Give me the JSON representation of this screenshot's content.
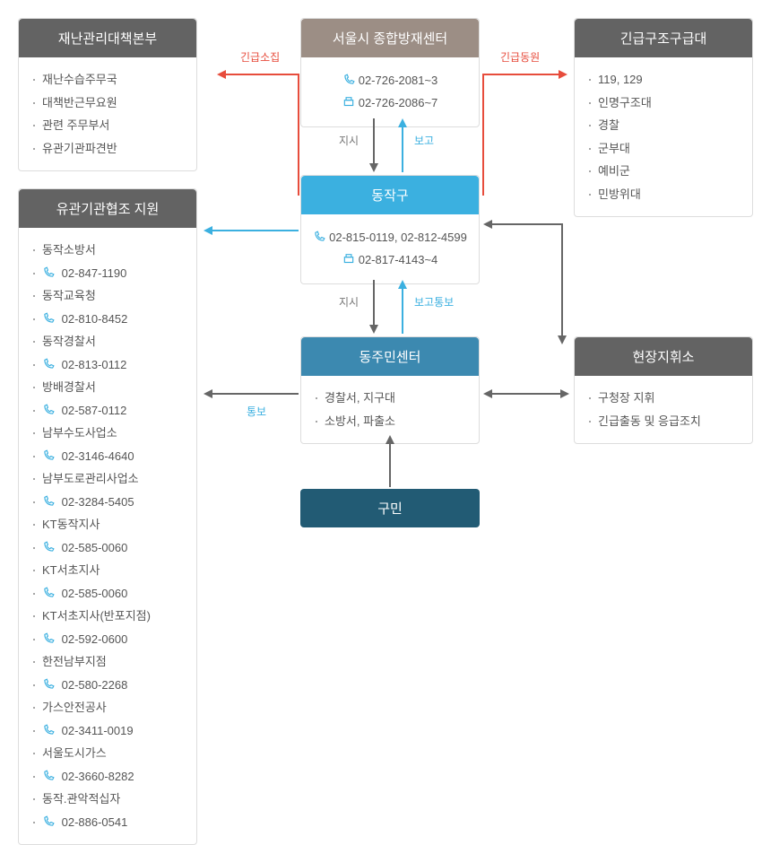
{
  "colors": {
    "beige": "#9c8e85",
    "dark": "#636363",
    "blue1": "#3bb0e0",
    "blue2": "#3c89b0",
    "blue3": "#225b74",
    "border": "#dddddd",
    "text": "#555555",
    "red": "#e74c3c",
    "gray_arrow": "#666666",
    "blue_arrow": "#3bb0e0"
  },
  "left1": {
    "title": "재난관리대책본부",
    "items": [
      "재난수습주무국",
      "대책반근무요원",
      "관련 주무부서",
      "유관기관파견반"
    ]
  },
  "left2": {
    "title": "유관기관협조 지원",
    "items": [
      {
        "t": "동작소방서"
      },
      {
        "tel": "02-847-1190"
      },
      {
        "t": "동작교육청"
      },
      {
        "tel": "02-810-8452"
      },
      {
        "t": "동작경찰서"
      },
      {
        "tel": "02-813-0112"
      },
      {
        "t": "방배경찰서"
      },
      {
        "tel": "02-587-0112"
      },
      {
        "t": "남부수도사업소"
      },
      {
        "tel": "02-3146-4640"
      },
      {
        "t": "남부도로관리사업소"
      },
      {
        "tel": "02-3284-5405"
      },
      {
        "t": "KT동작지사"
      },
      {
        "tel": "02-585-0060"
      },
      {
        "t": "KT서초지사"
      },
      {
        "tel": "02-585-0060"
      },
      {
        "t": "KT서초지사(반포지점)"
      },
      {
        "tel": "02-592-0600"
      },
      {
        "t": "한전남부지점"
      },
      {
        "tel": "02-580-2268"
      },
      {
        "t": "가스안전공사"
      },
      {
        "tel": "02-3411-0019"
      },
      {
        "t": "서울도시가스"
      },
      {
        "tel": "02-3660-8282"
      },
      {
        "t": "동작.관악적십자"
      },
      {
        "tel": "02-886-0541"
      }
    ]
  },
  "mid1": {
    "title": "서울시 종합방재센터",
    "tel": "02-726-2081~3",
    "fax": "02-726-2086~7"
  },
  "mid2": {
    "title": "동작구",
    "tel": "02-815-0119, 02-812-4599",
    "fax": "02-817-4143~4"
  },
  "mid3": {
    "title": "동주민센터",
    "items": [
      "경찰서, 지구대",
      "소방서, 파출소"
    ]
  },
  "mid4": {
    "title": "구민"
  },
  "right1": {
    "title": "긴급구조구급대",
    "items": [
      "119, 129",
      "인명구조대",
      "경찰",
      "군부대",
      "예비군",
      "민방위대"
    ]
  },
  "right2": {
    "title": "현장지휘소",
    "items": [
      "구청장 지휘",
      "긴급출동 및 응급조치"
    ]
  },
  "labels": {
    "emergency_call": "긴급소집",
    "emergency_mob": "긴급동원",
    "order": "지시",
    "report": "보고",
    "report_notify": "보고통보",
    "notify": "통보"
  }
}
